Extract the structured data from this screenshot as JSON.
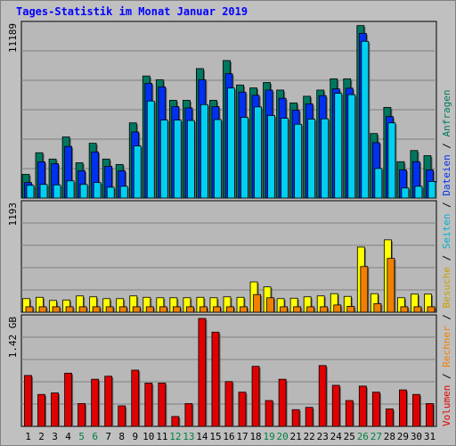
{
  "title": "Tages-Statistik im Monat Januar 2019",
  "colors": {
    "background": "#c0c0c0",
    "plot_bg": "#b8b8b8",
    "grid": "#808080",
    "title": "#0000ff",
    "anfragen": "#007860",
    "dateien": "#0030f0",
    "seiten": "#00d0f0",
    "besuche": "#ffff00",
    "rechner": "#f08000",
    "volumen": "#e00000",
    "weekend_label": "#008040"
  },
  "right_legend": [
    {
      "text": "Volumen",
      "color": "#e00000"
    },
    {
      "text": " / ",
      "color": "#000000"
    },
    {
      "text": "Rechner",
      "color": "#f08000"
    },
    {
      "text": " / ",
      "color": "#000000"
    },
    {
      "text": "Besuche",
      "color": "#c8a000"
    },
    {
      "text": " / ",
      "color": "#000000"
    },
    {
      "text": "Seiten",
      "color": "#00b0d0"
    },
    {
      "text": " / ",
      "color": "#000000"
    },
    {
      "text": "Dateien",
      "color": "#0030f0"
    },
    {
      "text": " / ",
      "color": "#000000"
    },
    {
      "text": "Anfragen",
      "color": "#007860"
    }
  ],
  "chart_data": [
    {
      "type": "bar",
      "panel": "top",
      "ymax_label": "11189",
      "ylim": [
        0,
        11189
      ],
      "categories": [
        "1",
        "2",
        "3",
        "4",
        "5",
        "6",
        "7",
        "8",
        "9",
        "10",
        "11",
        "12",
        "13",
        "14",
        "15",
        "16",
        "17",
        "18",
        "19",
        "20",
        "21",
        "22",
        "23",
        "24",
        "25",
        "26",
        "27",
        "28",
        "29",
        "30",
        "31"
      ],
      "weekend_days": [
        "5",
        "6",
        "12",
        "13",
        "19",
        "20",
        "26",
        "27"
      ],
      "series": [
        {
          "name": "Anfragen",
          "values": [
            1530,
            2930,
            2520,
            3950,
            2280,
            3540,
            2520,
            2170,
            4860,
            7890,
            7650,
            6320,
            6320,
            8370,
            6320,
            8890,
            7310,
            7120,
            7470,
            6980,
            6150,
            6580,
            6980,
            7710,
            7710,
            11150,
            4170,
            5860,
            2350,
            3070,
            2740
          ]
        },
        {
          "name": "Dateien",
          "values": [
            1000,
            2340,
            2220,
            3340,
            1760,
            2980,
            2050,
            1760,
            4270,
            7410,
            7190,
            5910,
            5830,
            7650,
            5910,
            8040,
            6850,
            6640,
            6980,
            6450,
            5680,
            6090,
            6620,
            7060,
            7100,
            10650,
            3580,
            5270,
            1820,
            2350,
            1820
          ]
        },
        {
          "name": "Seiten",
          "values": [
            820,
            880,
            850,
            1110,
            880,
            1000,
            700,
            760,
            3370,
            6270,
            5040,
            5040,
            5010,
            6040,
            5070,
            7110,
            5210,
            5890,
            5330,
            5160,
            4770,
            5100,
            5120,
            6770,
            6680,
            10130,
            1910,
            4860,
            650,
            760,
            1070
          ]
        }
      ]
    },
    {
      "type": "bar",
      "panel": "middle",
      "ymax_label": "1193",
      "ylim": [
        0,
        1193
      ],
      "series": [
        {
          "name": "Besuche",
          "values": [
            150,
            165,
            130,
            135,
            180,
            170,
            150,
            150,
            180,
            165,
            160,
            160,
            160,
            165,
            160,
            170,
            165,
            335,
            280,
            150,
            155,
            170,
            180,
            205,
            175,
            720,
            205,
            800,
            160,
            200,
            200
          ]
        },
        {
          "name": "Rechner",
          "values": [
            60,
            60,
            60,
            60,
            60,
            60,
            60,
            60,
            60,
            60,
            60,
            60,
            60,
            60,
            60,
            60,
            60,
            195,
            160,
            60,
            60,
            60,
            60,
            80,
            65,
            505,
            95,
            595,
            60,
            60,
            60
          ]
        }
      ]
    },
    {
      "type": "bar",
      "panel": "bottom",
      "ymax_label": "1.42 GB",
      "ylim": [
        0,
        1.42
      ],
      "series": [
        {
          "name": "Volumen",
          "values": [
            0.67,
            0.42,
            0.44,
            0.7,
            0.3,
            0.62,
            0.66,
            0.27,
            0.74,
            0.57,
            0.57,
            0.13,
            0.3,
            1.42,
            1.24,
            0.59,
            0.45,
            0.79,
            0.34,
            0.62,
            0.22,
            0.25,
            0.8,
            0.54,
            0.34,
            0.53,
            0.45,
            0.23,
            0.48,
            0.42,
            0.3
          ]
        }
      ]
    }
  ]
}
